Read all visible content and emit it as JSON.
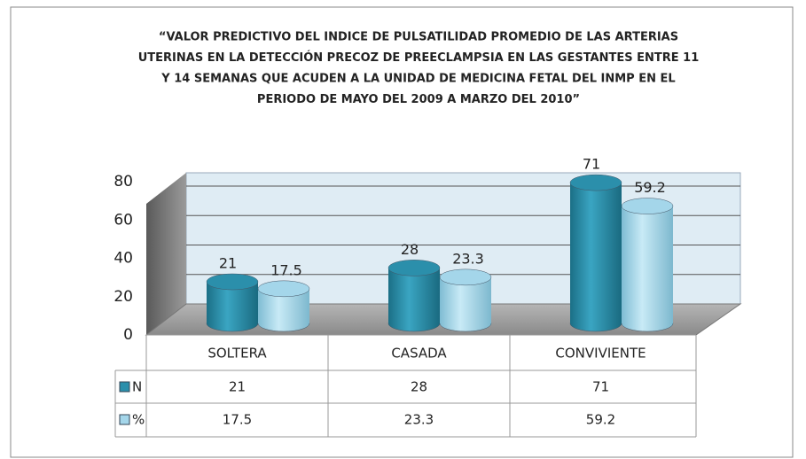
{
  "chart_data": {
    "type": "bar3d-cylinder",
    "title": [
      "“VALOR PREDICTIVO DEL INDICE DE PULSATILIDAD PROMEDIO DE LAS ARTERIAS",
      "UTERINAS EN LA DETECCIÓN PRECOZ DE PREECLAMPSIA EN LAS GESTANTES ENTRE 11",
      "Y 14 SEMANAS QUE ACUDEN A LA UNIDAD DE MEDICINA FETAL DEL INMP EN EL",
      "PERIODO DE MAYO DEL 2009 A MARZO DEL 2010”"
    ],
    "categories": [
      "SOLTERA",
      "CASADA",
      "CONVIVIENTE"
    ],
    "series": [
      {
        "name": "N",
        "color": "#2b8fab",
        "values": [
          21,
          28,
          71
        ]
      },
      {
        "name": "%",
        "color": "#a4d6ea",
        "values": [
          17.5,
          23.3,
          59.2
        ]
      }
    ],
    "ylim": [
      0,
      80
    ],
    "yticks": [
      0,
      20,
      40,
      60,
      80
    ],
    "grid": true,
    "data_table": true
  }
}
